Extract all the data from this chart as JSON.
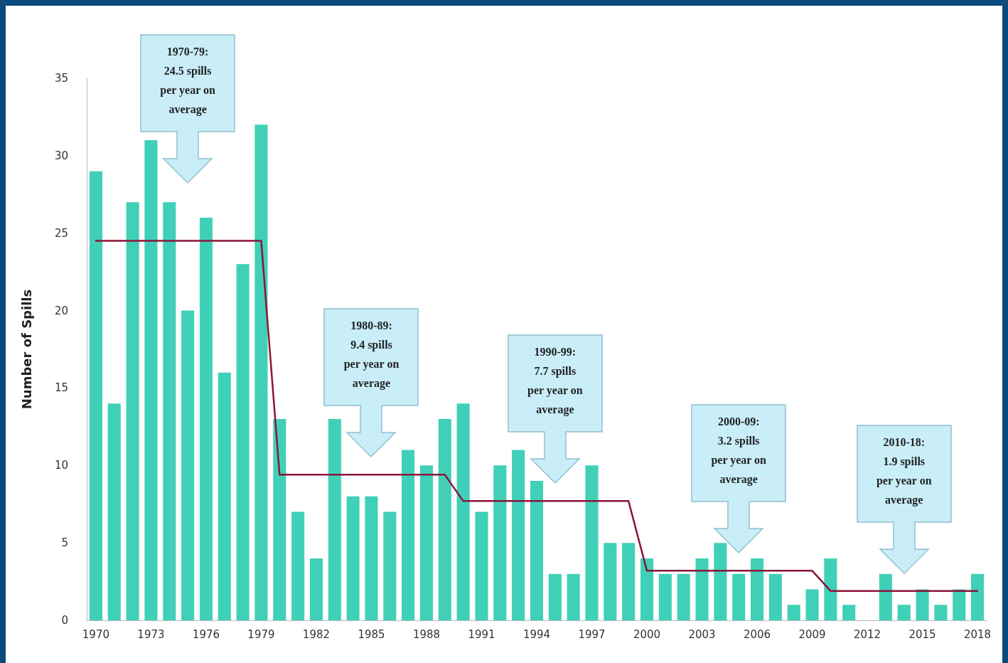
{
  "chart_data": {
    "type": "bar",
    "ylabel": "Number of Spills",
    "categories": [
      "1970",
      null,
      null,
      "1973",
      null,
      null,
      "1976",
      null,
      null,
      "1979",
      null,
      null,
      "1982",
      null,
      null,
      "1985",
      null,
      null,
      "1988",
      null,
      null,
      "1991",
      null,
      null,
      "1994",
      null,
      null,
      "1997",
      null,
      null,
      "2000",
      null,
      null,
      "2003",
      null,
      null,
      "2006",
      null,
      null,
      "2009",
      null,
      null,
      "2012",
      null,
      null,
      "2015",
      null,
      null,
      "2018"
    ],
    "series": [
      {
        "color": "#40d0b8",
        "values": [
          29,
          14,
          27,
          31,
          27,
          20,
          26,
          16,
          23,
          32,
          13,
          7,
          4,
          13,
          8,
          8,
          7,
          11,
          10,
          13,
          14,
          7,
          10,
          11,
          9,
          3,
          3,
          10,
          5,
          5,
          4,
          3,
          3,
          4,
          5,
          3,
          4,
          3,
          1,
          2,
          4,
          1,
          0,
          3,
          1,
          2,
          1,
          2,
          3
        ]
      },
      {
        "type": "line",
        "color": "#8b1538",
        "values": [
          24.5,
          24.5,
          24.5,
          24.5,
          24.5,
          24.5,
          24.5,
          24.5,
          24.5,
          24.5,
          9.4,
          9.4,
          9.4,
          9.4,
          9.4,
          9.4,
          9.4,
          9.4,
          9.4,
          9.4,
          7.7,
          7.7,
          7.7,
          7.7,
          7.7,
          7.7,
          7.7,
          7.7,
          7.7,
          7.7,
          3.2,
          3.2,
          3.2,
          3.2,
          3.2,
          3.2,
          3.2,
          3.2,
          3.2,
          3.2,
          1.9,
          1.9,
          1.9,
          1.9,
          1.9,
          1.9,
          1.9,
          1.9,
          1.9
        ]
      }
    ],
    "ylim": [
      0,
      35
    ],
    "yticks": [
      0,
      5,
      10,
      15,
      20,
      25,
      30,
      35
    ],
    "grid": false,
    "marker": "none",
    "line_style": "solid",
    "annotations": [
      "1970-79:\n24.5 spills\nper year on\naverage",
      "1980-89:\n9.4 spills\nper year on\naverage",
      "1990-99:\n7.7 spills\nper year on\naverage",
      "2000-09:\n3.2 spills\nper year on\naverage",
      "2010-18:\n1.9 spills\nper year on\naverage"
    ]
  }
}
